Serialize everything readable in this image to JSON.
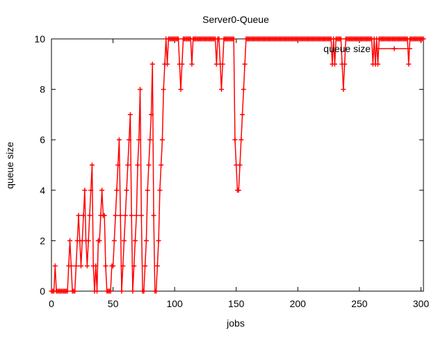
{
  "chart_data": {
    "type": "line",
    "title": "Server0-Queue",
    "xlabel": "jobs",
    "ylabel": "queue size",
    "xlim": [
      0,
      302
    ],
    "ylim": [
      0,
      10
    ],
    "xticks": [
      "0",
      "50",
      "100",
      "150",
      "200",
      "250",
      "300"
    ],
    "yticks": [
      "0",
      "2",
      "4",
      "6",
      "8",
      "10"
    ],
    "grid": false,
    "legend_position": "top-right",
    "series": [
      {
        "name": "queue size",
        "color": "#ff0000",
        "marker": "plus",
        "points": [
          [
            0,
            0
          ],
          [
            1,
            0
          ],
          [
            2,
            0
          ],
          [
            3,
            1
          ],
          [
            4,
            0
          ],
          [
            5,
            0
          ],
          [
            6,
            0
          ],
          [
            7,
            0
          ],
          [
            8,
            0
          ],
          [
            9,
            0
          ],
          [
            10,
            0
          ],
          [
            11,
            0
          ],
          [
            12,
            0
          ],
          [
            13,
            0
          ],
          [
            14,
            1
          ],
          [
            15,
            2
          ],
          [
            16,
            1
          ],
          [
            17,
            0
          ],
          [
            18,
            0
          ],
          [
            19,
            0
          ],
          [
            20,
            1
          ],
          [
            21,
            2
          ],
          [
            22,
            3
          ],
          [
            23,
            2
          ],
          [
            24,
            1
          ],
          [
            25,
            2
          ],
          [
            26,
            3
          ],
          [
            27,
            4
          ],
          [
            28,
            2
          ],
          [
            29,
            1
          ],
          [
            30,
            2
          ],
          [
            31,
            3
          ],
          [
            32,
            4
          ],
          [
            33,
            5
          ],
          [
            34,
            1
          ],
          [
            35,
            0
          ],
          [
            36,
            1
          ],
          [
            37,
            0
          ],
          [
            38,
            2
          ],
          [
            39,
            2
          ],
          [
            40,
            3
          ],
          [
            41,
            4
          ],
          [
            42,
            3
          ],
          [
            43,
            3
          ],
          [
            44,
            1
          ],
          [
            45,
            0
          ],
          [
            46,
            0
          ],
          [
            47,
            0
          ],
          [
            48,
            0
          ],
          [
            49,
            1
          ],
          [
            50,
            1
          ],
          [
            51,
            2
          ],
          [
            52,
            3
          ],
          [
            53,
            4
          ],
          [
            54,
            5
          ],
          [
            55,
            6
          ],
          [
            56,
            3
          ],
          [
            57,
            0
          ],
          [
            58,
            1
          ],
          [
            59,
            2
          ],
          [
            60,
            3
          ],
          [
            61,
            4
          ],
          [
            62,
            5
          ],
          [
            63,
            6
          ],
          [
            64,
            7
          ],
          [
            65,
            3
          ],
          [
            66,
            0
          ],
          [
            67,
            1
          ],
          [
            68,
            2
          ],
          [
            69,
            3
          ],
          [
            70,
            5
          ],
          [
            71,
            6
          ],
          [
            72,
            8
          ],
          [
            73,
            3
          ],
          [
            74,
            0
          ],
          [
            75,
            0
          ],
          [
            76,
            1
          ],
          [
            77,
            2
          ],
          [
            78,
            4
          ],
          [
            79,
            5
          ],
          [
            80,
            6
          ],
          [
            81,
            7
          ],
          [
            82,
            9
          ],
          [
            83,
            3
          ],
          [
            84,
            0
          ],
          [
            85,
            0
          ],
          [
            86,
            1
          ],
          [
            87,
            2
          ],
          [
            88,
            4
          ],
          [
            89,
            5
          ],
          [
            90,
            6
          ],
          [
            91,
            8
          ],
          [
            92,
            9
          ],
          [
            93,
            10
          ],
          [
            94,
            9
          ],
          [
            95,
            10
          ],
          [
            96,
            10
          ],
          [
            97,
            10
          ],
          [
            98,
            10
          ],
          [
            99,
            10
          ],
          [
            100,
            10
          ],
          [
            101,
            10
          ],
          [
            102,
            10
          ],
          [
            103,
            10
          ],
          [
            104,
            9
          ],
          [
            105,
            8
          ],
          [
            106,
            9
          ],
          [
            107,
            10
          ],
          [
            108,
            10
          ],
          [
            109,
            10
          ],
          [
            110,
            10
          ],
          [
            111,
            10
          ],
          [
            112,
            10
          ],
          [
            113,
            10
          ],
          [
            114,
            9
          ],
          [
            115,
            10
          ],
          [
            116,
            10
          ],
          [
            117,
            10
          ],
          [
            118,
            10
          ],
          [
            119,
            10
          ],
          [
            120,
            10
          ],
          [
            121,
            10
          ],
          [
            122,
            10
          ],
          [
            123,
            10
          ],
          [
            124,
            10
          ],
          [
            125,
            10
          ],
          [
            126,
            10
          ],
          [
            127,
            10
          ],
          [
            128,
            10
          ],
          [
            129,
            10
          ],
          [
            130,
            10
          ],
          [
            131,
            10
          ],
          [
            132,
            10
          ],
          [
            133,
            10
          ],
          [
            134,
            9
          ],
          [
            135,
            10
          ],
          [
            136,
            10
          ],
          [
            137,
            9
          ],
          [
            138,
            8
          ],
          [
            139,
            9
          ],
          [
            140,
            10
          ],
          [
            141,
            10
          ],
          [
            142,
            10
          ],
          [
            143,
            10
          ],
          [
            144,
            10
          ],
          [
            145,
            10
          ],
          [
            146,
            10
          ],
          [
            147,
            10
          ],
          [
            148,
            10
          ],
          [
            149,
            6
          ],
          [
            150,
            5
          ],
          [
            151,
            4
          ],
          [
            152,
            4
          ],
          [
            153,
            5
          ],
          [
            154,
            6
          ],
          [
            155,
            7
          ],
          [
            156,
            8
          ],
          [
            157,
            9
          ],
          [
            158,
            10
          ],
          [
            159,
            10
          ],
          [
            160,
            10
          ],
          [
            161,
            10
          ],
          [
            162,
            10
          ],
          [
            163,
            10
          ],
          [
            164,
            10
          ],
          [
            165,
            10
          ],
          [
            166,
            10
          ],
          [
            167,
            10
          ],
          [
            168,
            10
          ],
          [
            169,
            10
          ],
          [
            170,
            10
          ],
          [
            171,
            10
          ],
          [
            172,
            10
          ],
          [
            173,
            10
          ],
          [
            174,
            10
          ],
          [
            175,
            10
          ],
          [
            176,
            10
          ],
          [
            177,
            10
          ],
          [
            178,
            10
          ],
          [
            179,
            10
          ],
          [
            180,
            10
          ],
          [
            181,
            10
          ],
          [
            182,
            10
          ],
          [
            183,
            10
          ],
          [
            184,
            10
          ],
          [
            185,
            10
          ],
          [
            186,
            10
          ],
          [
            187,
            10
          ],
          [
            188,
            10
          ],
          [
            189,
            10
          ],
          [
            190,
            10
          ],
          [
            191,
            10
          ],
          [
            192,
            10
          ],
          [
            193,
            10
          ],
          [
            194,
            10
          ],
          [
            195,
            10
          ],
          [
            196,
            10
          ],
          [
            197,
            10
          ],
          [
            198,
            10
          ],
          [
            199,
            10
          ],
          [
            200,
            10
          ],
          [
            201,
            10
          ],
          [
            202,
            10
          ],
          [
            203,
            10
          ],
          [
            204,
            10
          ],
          [
            205,
            10
          ],
          [
            206,
            10
          ],
          [
            207,
            10
          ],
          [
            208,
            10
          ],
          [
            209,
            10
          ],
          [
            210,
            10
          ],
          [
            211,
            10
          ],
          [
            212,
            10
          ],
          [
            213,
            10
          ],
          [
            214,
            10
          ],
          [
            215,
            10
          ],
          [
            216,
            10
          ],
          [
            217,
            10
          ],
          [
            218,
            10
          ],
          [
            219,
            10
          ],
          [
            220,
            10
          ],
          [
            221,
            10
          ],
          [
            222,
            10
          ],
          [
            223,
            10
          ],
          [
            224,
            10
          ],
          [
            225,
            10
          ],
          [
            226,
            10
          ],
          [
            227,
            10
          ],
          [
            228,
            9
          ],
          [
            229,
            10
          ],
          [
            230,
            9
          ],
          [
            231,
            10
          ],
          [
            232,
            10
          ],
          [
            233,
            10
          ],
          [
            234,
            10
          ],
          [
            235,
            10
          ],
          [
            236,
            9
          ],
          [
            237,
            8
          ],
          [
            238,
            9
          ],
          [
            239,
            10
          ],
          [
            240,
            10
          ],
          [
            241,
            10
          ],
          [
            242,
            10
          ],
          [
            243,
            10
          ],
          [
            244,
            10
          ],
          [
            245,
            10
          ],
          [
            246,
            10
          ],
          [
            247,
            10
          ],
          [
            248,
            10
          ],
          [
            249,
            10
          ],
          [
            250,
            10
          ],
          [
            251,
            10
          ],
          [
            252,
            10
          ],
          [
            253,
            10
          ],
          [
            254,
            10
          ],
          [
            255,
            10
          ],
          [
            256,
            10
          ],
          [
            257,
            10
          ],
          [
            258,
            10
          ],
          [
            259,
            10
          ],
          [
            260,
            10
          ],
          [
            261,
            9
          ],
          [
            262,
            10
          ],
          [
            263,
            9
          ],
          [
            264,
            10
          ],
          [
            265,
            9
          ],
          [
            266,
            10
          ],
          [
            267,
            10
          ],
          [
            268,
            10
          ],
          [
            269,
            10
          ],
          [
            270,
            10
          ],
          [
            271,
            10
          ],
          [
            272,
            10
          ],
          [
            273,
            10
          ],
          [
            274,
            10
          ],
          [
            275,
            10
          ],
          [
            276,
            10
          ],
          [
            277,
            10
          ],
          [
            278,
            10
          ],
          [
            279,
            10
          ],
          [
            280,
            10
          ],
          [
            281,
            10
          ],
          [
            282,
            10
          ],
          [
            283,
            10
          ],
          [
            284,
            10
          ],
          [
            285,
            10
          ],
          [
            286,
            10
          ],
          [
            287,
            10
          ],
          [
            288,
            10
          ],
          [
            289,
            10
          ],
          [
            290,
            9
          ],
          [
            291,
            10
          ],
          [
            292,
            10
          ],
          [
            293,
            10
          ],
          [
            294,
            10
          ],
          [
            295,
            10
          ],
          [
            296,
            10
          ],
          [
            297,
            10
          ],
          [
            298,
            10
          ],
          [
            299,
            10
          ],
          [
            300,
            10
          ],
          [
            301,
            10
          ],
          [
            302,
            10
          ]
        ]
      }
    ]
  }
}
